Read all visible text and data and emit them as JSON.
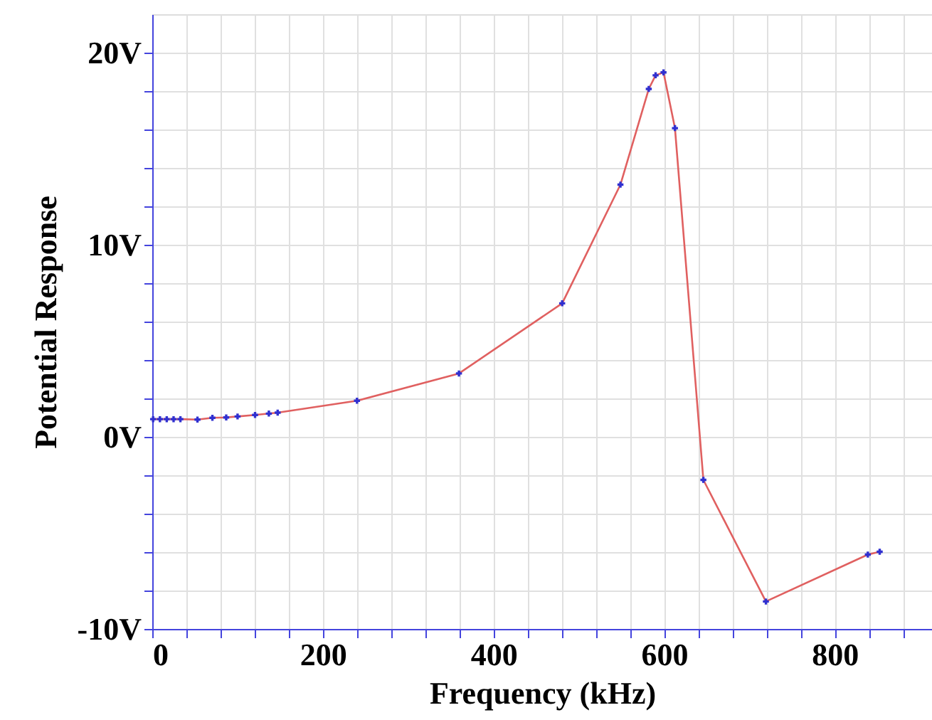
{
  "chart_data": {
    "type": "line",
    "xlabel": "Frequency (kHz)",
    "ylabel": "Potential Response",
    "x": [
      1,
      9,
      17,
      25,
      33,
      53,
      70.5,
      86.7,
      100,
      120.5,
      136.7,
      147,
      240,
      359.5,
      480.5,
      548.8,
      582,
      590,
      599.3,
      612.7,
      646,
      719.3,
      838.8,
      852.7
    ],
    "series": [
      {
        "color": "#e06060",
        "values": [
          0.92,
          0.92,
          0.92,
          0.92,
          0.92,
          0.9,
          0.99,
          1.01,
          1.06,
          1.14,
          1.21,
          1.26,
          1.88,
          3.3,
          6.95,
          13.13,
          18.11,
          18.82,
          18.97,
          16.07,
          -2.24,
          -8.57,
          -6.13,
          -5.98
        ]
      },
      {
        "type": "scatter",
        "marker": "cross",
        "color": "#3030d0",
        "values": [
          0.92,
          0.92,
          0.92,
          0.92,
          0.92,
          0.9,
          0.99,
          1.01,
          1.06,
          1.14,
          1.21,
          1.26,
          1.88,
          3.3,
          6.95,
          13.13,
          18.11,
          18.82,
          18.97,
          16.07,
          -2.24,
          -8.57,
          -6.13,
          -5.98
        ]
      }
    ],
    "xlim": [
      0,
      914
    ],
    "ylim": [
      -10,
      22
    ],
    "xticks": [
      0,
      {
        "value": 40,
        "label": null
      },
      {
        "value": 80,
        "label": null
      },
      {
        "value": 120,
        "label": null
      },
      {
        "value": 160,
        "label": null
      },
      200,
      {
        "value": 240,
        "label": null
      },
      {
        "value": 280,
        "label": null
      },
      {
        "value": 320,
        "label": null
      },
      {
        "value": 360,
        "label": null
      },
      400,
      {
        "value": 440,
        "label": null
      },
      {
        "value": 480,
        "label": null
      },
      {
        "value": 520,
        "label": null
      },
      {
        "value": 560,
        "label": null
      },
      600,
      {
        "value": 640,
        "label": null
      },
      {
        "value": 680,
        "label": null
      },
      {
        "value": 720,
        "label": null
      },
      {
        "value": 760,
        "label": null
      },
      800,
      {
        "value": 840,
        "label": null
      },
      {
        "value": 880,
        "label": null
      }
    ],
    "yticks": [
      {
        "value": -10,
        "label": "-10V"
      },
      {
        "value": -8,
        "label": null
      },
      {
        "value": -6,
        "label": null
      },
      {
        "value": -4,
        "label": null
      },
      {
        "value": -2,
        "label": null
      },
      {
        "value": 0,
        "label": "0V"
      },
      {
        "value": 2,
        "label": null
      },
      {
        "value": 4,
        "label": null
      },
      {
        "value": 6,
        "label": null
      },
      {
        "value": 8,
        "label": null
      },
      {
        "value": 10,
        "label": "10V"
      },
      {
        "value": 12,
        "label": null
      },
      {
        "value": 14,
        "label": null
      },
      {
        "value": 16,
        "label": null
      },
      {
        "value": 18,
        "label": null
      },
      {
        "value": 20,
        "label": "20V"
      }
    ],
    "grid": true,
    "line_style": "solid"
  }
}
